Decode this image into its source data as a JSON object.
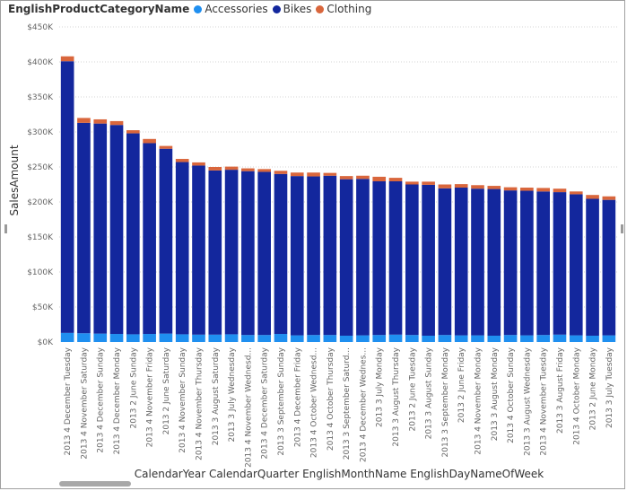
{
  "legend": {
    "title": "EnglishProductCategoryName",
    "items": [
      {
        "label": "Accessories",
        "color": "#1f8ff0"
      },
      {
        "label": "Bikes",
        "color": "#13279d"
      },
      {
        "label": "Clothing",
        "color": "#d9663c"
      }
    ]
  },
  "chart_data": {
    "type": "bar",
    "stacked": true,
    "xlabel": "CalendarYear CalendarQuarter EnglishMonthName EnglishDayNameOfWeek",
    "ylabel": "SalesAmount",
    "ylim": [
      0,
      450000
    ],
    "yticks": [
      0,
      50000,
      100000,
      150000,
      200000,
      250000,
      300000,
      350000,
      400000,
      450000
    ],
    "ytick_labels": [
      "$0K",
      "$50K",
      "$100K",
      "$150K",
      "$200K",
      "$250K",
      "$300K",
      "$350K",
      "$400K",
      "$450K"
    ],
    "grid": true,
    "legend_position": "top-left",
    "categories": [
      "2013 4 December Tuesday",
      "2013 4 November Saturday",
      "2013 4 December Sunday",
      "2013 4 December Monday",
      "2013 2 June Sunday",
      "2013 4 November Friday",
      "2013 2 June Saturday",
      "2013 4 November Sunday",
      "2013 4 November Thursday",
      "2013 3 August Saturday",
      "2013 3 July Wednesday",
      "2013 4 November Wednesd...",
      "2013 4 December Saturday",
      "2013 3 September Sunday",
      "2013 4 December Friday",
      "2013 4 October Wednesd...",
      "2013 4 October Thursday",
      "2013 3 September Saturd...",
      "2013 4 December Wednes...",
      "2013 3 July Monday",
      "2013 3 August Thursday",
      "2013 2 June Tuesday",
      "2013 3 August Sunday",
      "2013 3 September Monday",
      "2013 2 June Friday",
      "2013 4 November Monday",
      "2013 3 August Monday",
      "2013 4 October Sunday",
      "2013 3 August Wednesday",
      "2013 4 November Tuesday",
      "2013 3 August Friday",
      "2013 4 October Monday",
      "2013 2 June Monday",
      "2013 3 July Tuesday"
    ],
    "series": [
      {
        "name": "Accessories",
        "values": [
          13000,
          12500,
          12000,
          11500,
          11000,
          11500,
          12000,
          11000,
          10500,
          10500,
          11000,
          10000,
          10000,
          11500,
          9500,
          10000,
          10000,
          9000,
          9500,
          10000,
          10500,
          10000,
          9000,
          10000,
          9500,
          9500,
          9000,
          10000,
          9500,
          10000,
          10500,
          9500,
          9000,
          9500
        ]
      },
      {
        "name": "Bikes",
        "values": [
          388000,
          300500,
          300000,
          298500,
          287000,
          272500,
          264000,
          246000,
          241500,
          234500,
          235000,
          234000,
          233000,
          228500,
          227500,
          226500,
          227500,
          223500,
          223500,
          219500,
          219000,
          215000,
          215500,
          209500,
          211000,
          209500,
          209500,
          206500,
          206500,
          205000,
          203500,
          201500,
          195500,
          193500
        ]
      },
      {
        "name": "Clothing",
        "values": [
          7000,
          7000,
          6000,
          5500,
          4500,
          6000,
          4000,
          4500,
          4500,
          5000,
          4500,
          4000,
          4000,
          4500,
          5000,
          5500,
          4000,
          4500,
          4500,
          6500,
          5000,
          4000,
          4500,
          5500,
          5000,
          5000,
          4500,
          4500,
          4500,
          5000,
          5000,
          4000,
          5500,
          5000
        ]
      }
    ]
  }
}
